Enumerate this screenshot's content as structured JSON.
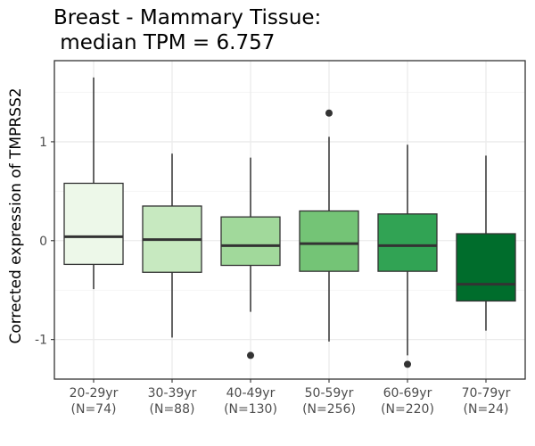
{
  "chart_data": {
    "type": "boxplot",
    "title_line1": "Breast - Mammary Tissue:",
    "title_line2": " median TPM = 6.757",
    "ylabel": "Corrected expression of TMPRSS2",
    "xlabel": "",
    "ylim": [
      -1.4,
      1.82
    ],
    "y_ticks": [
      {
        "value": 1,
        "label": "1"
      },
      {
        "value": 0,
        "label": "0"
      },
      {
        "value": -1,
        "label": "-1"
      }
    ],
    "grid": true,
    "legend": "none",
    "categories": [
      {
        "label": "20-29yr",
        "n_label": "(N=74)"
      },
      {
        "label": "30-39yr",
        "n_label": "(N=88)"
      },
      {
        "label": "40-49yr",
        "n_label": "(N=130)"
      },
      {
        "label": "50-59yr",
        "n_label": "(N=256)"
      },
      {
        "label": "60-69yr",
        "n_label": "(N=220)"
      },
      {
        "label": "70-79yr",
        "n_label": "(N=24)"
      }
    ],
    "boxes": [
      {
        "min": -0.49,
        "q1": -0.24,
        "median": 0.04,
        "q3": 0.58,
        "max": 1.65,
        "outliers": [],
        "fill": "#edf8e9"
      },
      {
        "min": -0.98,
        "q1": -0.32,
        "median": 0.01,
        "q3": 0.35,
        "max": 0.88,
        "outliers": [],
        "fill": "#c7e9c0"
      },
      {
        "min": -0.72,
        "q1": -0.25,
        "median": -0.05,
        "q3": 0.24,
        "max": 0.84,
        "outliers": [
          -1.16
        ],
        "fill": "#a1d99b"
      },
      {
        "min": -1.02,
        "q1": -0.31,
        "median": -0.03,
        "q3": 0.3,
        "max": 1.05,
        "outliers": [
          1.29
        ],
        "fill": "#74c476"
      },
      {
        "min": -1.16,
        "q1": -0.31,
        "median": -0.05,
        "q3": 0.27,
        "max": 0.97,
        "outliers": [
          -1.25
        ],
        "fill": "#31a354"
      },
      {
        "min": -0.91,
        "q1": -0.61,
        "median": -0.44,
        "q3": 0.07,
        "max": 0.86,
        "outliers": [],
        "fill": "#006d2c"
      }
    ]
  }
}
